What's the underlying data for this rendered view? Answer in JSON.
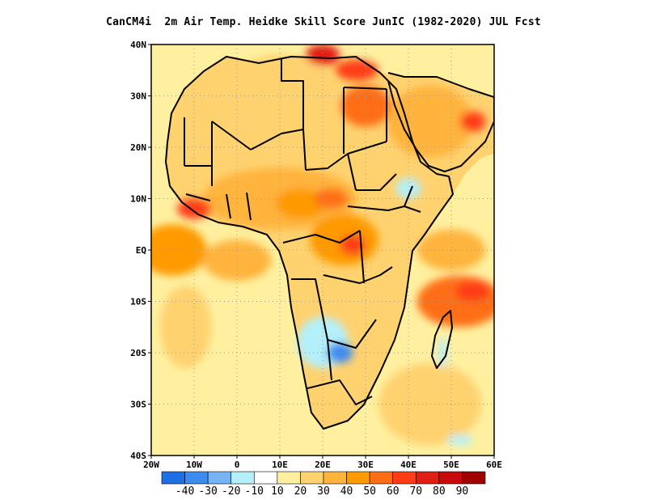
{
  "title": "CanCM4i  2m Air Temp. Heidke Skill Score JunIC (1982-2020) JUL Fcst",
  "map": {
    "lon_range": [
      -20,
      60
    ],
    "lat_range": [
      -40,
      40
    ],
    "lat_ticks": [
      {
        "value": 40,
        "label": "40N"
      },
      {
        "value": 30,
        "label": "30N"
      },
      {
        "value": 20,
        "label": "20N"
      },
      {
        "value": 10,
        "label": "10N"
      },
      {
        "value": 0,
        "label": "EQ"
      },
      {
        "value": -10,
        "label": "10S"
      },
      {
        "value": -20,
        "label": "20S"
      },
      {
        "value": -30,
        "label": "30S"
      },
      {
        "value": -40,
        "label": "40S"
      }
    ],
    "lon_ticks": [
      {
        "value": -20,
        "label": "20W"
      },
      {
        "value": -10,
        "label": "10W"
      },
      {
        "value": 0,
        "label": "0"
      },
      {
        "value": 10,
        "label": "10E"
      },
      {
        "value": 20,
        "label": "20E"
      },
      {
        "value": 30,
        "label": "30E"
      },
      {
        "value": 40,
        "label": "40E"
      },
      {
        "value": 50,
        "label": "50E"
      },
      {
        "value": 60,
        "label": "60E"
      }
    ],
    "grid": "dotted at 10-degree intervals",
    "skill_regions": [
      {
        "lon": 10,
        "lat": 28,
        "rx": 14,
        "ry": 10,
        "level": 20
      },
      {
        "lon": 30,
        "lat": 28,
        "rx": 6,
        "ry": 4,
        "level": 50
      },
      {
        "lon": 28,
        "lat": 35,
        "rx": 5,
        "ry": 2,
        "level": 60
      },
      {
        "lon": 20,
        "lat": 38,
        "rx": 4,
        "ry": 2,
        "level": 70
      },
      {
        "lon": 45,
        "lat": 25,
        "rx": 10,
        "ry": 7,
        "level": 30
      },
      {
        "lon": 55,
        "lat": 25,
        "rx": 3,
        "ry": 2,
        "level": 60
      },
      {
        "lon": 10,
        "lat": 10,
        "rx": 18,
        "ry": 6,
        "level": 30
      },
      {
        "lon": -10,
        "lat": 8,
        "rx": 4,
        "ry": 2,
        "level": 60
      },
      {
        "lon": 15,
        "lat": 9,
        "rx": 6,
        "ry": 3,
        "level": 40
      },
      {
        "lon": 22,
        "lat": 10,
        "rx": 4,
        "ry": 2,
        "level": 50
      },
      {
        "lon": 25,
        "lat": 2,
        "rx": 8,
        "ry": 5,
        "level": 40
      },
      {
        "lon": 27,
        "lat": 1,
        "rx": 3,
        "ry": 2,
        "level": 60
      },
      {
        "lon": -15,
        "lat": 0,
        "rx": 8,
        "ry": 5,
        "level": 40
      },
      {
        "lon": 0,
        "lat": -2,
        "rx": 8,
        "ry": 4,
        "level": 30
      },
      {
        "lon": 52,
        "lat": -10,
        "rx": 10,
        "ry": 5,
        "level": 50
      },
      {
        "lon": 55,
        "lat": -8,
        "rx": 4,
        "ry": 2,
        "level": 60
      },
      {
        "lon": 50,
        "lat": 0,
        "rx": 8,
        "ry": 4,
        "level": 30
      },
      {
        "lon": -12,
        "lat": -15,
        "rx": 6,
        "ry": 8,
        "level": 20
      },
      {
        "lon": 45,
        "lat": -30,
        "rx": 12,
        "ry": 8,
        "level": 20
      },
      {
        "lon": 20,
        "lat": -18,
        "rx": 6,
        "ry": 5,
        "level": -10
      },
      {
        "lon": 24,
        "lat": -20,
        "rx": 3,
        "ry": 2,
        "level": -30
      },
      {
        "lon": 40,
        "lat": 12,
        "rx": 3,
        "ry": 2,
        "level": -10
      },
      {
        "lon": 48,
        "lat": -20,
        "rx": 1,
        "ry": 3,
        "level": -10
      },
      {
        "lon": 52,
        "lat": -37,
        "rx": 3,
        "ry": 1,
        "level": -10
      }
    ]
  },
  "colorbar": {
    "levels": [
      -40,
      -30,
      -20,
      -10,
      10,
      20,
      30,
      40,
      50,
      60,
      70,
      80,
      90
    ],
    "labels": [
      "-40",
      "-30",
      "-20",
      "-10",
      "10",
      "20",
      "30",
      "40",
      "50",
      "60",
      "70",
      "80",
      "90"
    ],
    "colors": [
      "#1e6ee6",
      "#3c8cf0",
      "#78b4f5",
      "#b4f0fa",
      "#ffffff",
      "#fff0a0",
      "#ffd270",
      "#ffb43c",
      "#ff9a00",
      "#ff6e14",
      "#ff3c14",
      "#e11e14",
      "#c80a0a",
      "#a00000"
    ]
  },
  "colors": {
    "border": "#000000",
    "ocean_base": "#fff0a0",
    "land_base": "#ffd270",
    "grid": "#9a9a9a"
  }
}
